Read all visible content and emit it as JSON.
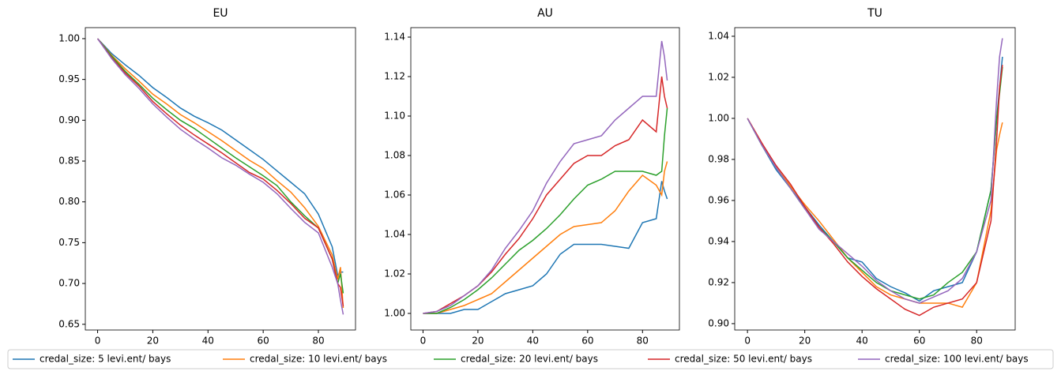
{
  "chart_data": [
    {
      "type": "line",
      "title": "EU",
      "x": [
        0,
        5,
        10,
        15,
        20,
        25,
        30,
        35,
        40,
        45,
        50,
        55,
        60,
        65,
        70,
        75,
        80,
        85,
        87,
        88,
        89
      ],
      "xlim": [
        -4.45,
        93.45
      ],
      "xticks": [
        0,
        20,
        40,
        60,
        80
      ],
      "ylim": [
        0.643,
        1.0135
      ],
      "yticks": [
        0.65,
        {
          "value": 0.7,
          "label": "0.70"
        },
        0.75,
        {
          "value": 0.8,
          "label": "0.80"
        },
        0.85,
        {
          "value": 0.9,
          "label": "0.90"
        },
        0.95,
        {
          "value": 1,
          "label": "1.00"
        }
      ],
      "series": [
        {
          "name": "credal_size: 5 levi.ent/ bays",
          "color": "#1f77b4",
          "values": [
            1.0,
            0.982,
            0.968,
            0.955,
            0.94,
            0.928,
            0.915,
            0.905,
            0.897,
            0.888,
            0.876,
            0.864,
            0.852,
            0.838,
            0.824,
            0.81,
            0.785,
            0.745,
            0.71,
            0.714,
            0.714
          ]
        },
        {
          "name": "credal_size: 10 levi.ent/ bays",
          "color": "#ff7f0e",
          "values": [
            1.0,
            0.98,
            0.963,
            0.948,
            0.932,
            0.92,
            0.907,
            0.897,
            0.886,
            0.875,
            0.863,
            0.851,
            0.841,
            0.826,
            0.812,
            0.793,
            0.77,
            0.735,
            0.705,
            0.72,
            0.67
          ]
        },
        {
          "name": "credal_size: 20 levi.ent/ bays",
          "color": "#2ca02c",
          "values": [
            1.0,
            0.979,
            0.96,
            0.944,
            0.927,
            0.913,
            0.9,
            0.89,
            0.878,
            0.866,
            0.854,
            0.843,
            0.832,
            0.82,
            0.8,
            0.783,
            0.768,
            0.73,
            0.7,
            0.712,
            0.688
          ]
        },
        {
          "name": "credal_size: 50 levi.ent/ bays",
          "color": "#d62728",
          "values": [
            1.0,
            0.977,
            0.958,
            0.942,
            0.923,
            0.908,
            0.894,
            0.882,
            0.871,
            0.86,
            0.848,
            0.836,
            0.828,
            0.814,
            0.798,
            0.78,
            0.768,
            0.73,
            0.7,
            0.695,
            0.672
          ]
        },
        {
          "name": "credal_size: 100 levi.ent/ bays",
          "color": "#9467bd",
          "values": [
            1.0,
            0.976,
            0.956,
            0.939,
            0.92,
            0.904,
            0.889,
            0.877,
            0.866,
            0.854,
            0.845,
            0.834,
            0.824,
            0.81,
            0.792,
            0.775,
            0.762,
            0.72,
            0.7,
            0.68,
            0.662
          ]
        }
      ]
    },
    {
      "type": "line",
      "title": "AU",
      "x": [
        0,
        5,
        10,
        15,
        20,
        25,
        30,
        35,
        40,
        45,
        50,
        55,
        60,
        65,
        70,
        75,
        80,
        85,
        87,
        88,
        89
      ],
      "xlim": [
        -4.45,
        93.45
      ],
      "xticks": [
        0,
        20,
        40,
        60,
        80
      ],
      "ylim": [
        0.9916,
        1.1448
      ],
      "yticks": [
        {
          "value": 1,
          "label": "1.00"
        },
        1.02,
        1.04,
        1.06,
        1.08,
        {
          "value": 1.1,
          "label": "1.10"
        },
        1.12,
        1.14
      ],
      "series": [
        {
          "color": "#1f77b4",
          "values": [
            1.0,
            1.0,
            1.0,
            1.002,
            1.002,
            1.006,
            1.01,
            1.012,
            1.014,
            1.02,
            1.03,
            1.035,
            1.035,
            1.035,
            1.034,
            1.033,
            1.046,
            1.048,
            1.067,
            1.062,
            1.058
          ]
        },
        {
          "color": "#ff7f0e",
          "values": [
            1.0,
            1.0,
            1.002,
            1.004,
            1.007,
            1.01,
            1.016,
            1.022,
            1.028,
            1.034,
            1.04,
            1.044,
            1.045,
            1.046,
            1.052,
            1.062,
            1.07,
            1.065,
            1.06,
            1.072,
            1.077
          ]
        },
        {
          "color": "#2ca02c",
          "values": [
            1.0,
            1.0,
            1.003,
            1.007,
            1.012,
            1.018,
            1.025,
            1.032,
            1.037,
            1.043,
            1.05,
            1.058,
            1.065,
            1.068,
            1.072,
            1.072,
            1.072,
            1.07,
            1.072,
            1.09,
            1.104
          ]
        },
        {
          "color": "#d62728",
          "values": [
            1.0,
            1.001,
            1.005,
            1.009,
            1.014,
            1.021,
            1.03,
            1.038,
            1.048,
            1.06,
            1.068,
            1.076,
            1.08,
            1.08,
            1.085,
            1.088,
            1.098,
            1.092,
            1.12,
            1.11,
            1.104
          ]
        },
        {
          "color": "#9467bd",
          "values": [
            1.0,
            1.001,
            1.004,
            1.009,
            1.014,
            1.022,
            1.033,
            1.042,
            1.052,
            1.066,
            1.077,
            1.086,
            1.088,
            1.09,
            1.098,
            1.104,
            1.11,
            1.11,
            1.138,
            1.13,
            1.118
          ]
        }
      ]
    },
    {
      "type": "line",
      "title": "TU",
      "x": [
        0,
        5,
        10,
        15,
        20,
        25,
        30,
        35,
        40,
        45,
        50,
        55,
        60,
        65,
        70,
        75,
        80,
        85,
        87,
        88,
        89
      ],
      "xlim": [
        -4.45,
        93.45
      ],
      "xticks": [
        0,
        20,
        40,
        60,
        80
      ],
      "ylim": [
        0.8969,
        1.0442
      ],
      "yticks": [
        {
          "value": 0.9,
          "label": "0.90"
        },
        0.92,
        0.94,
        0.96,
        0.98,
        {
          "value": 1,
          "label": "1.00"
        },
        1.02,
        1.04
      ],
      "series": [
        {
          "color": "#1f77b4",
          "values": [
            1.0,
            0.987,
            0.975,
            0.966,
            0.957,
            0.948,
            0.94,
            0.932,
            0.93,
            0.922,
            0.918,
            0.915,
            0.911,
            0.916,
            0.918,
            0.92,
            0.935,
            0.965,
            1.0,
            1.015,
            1.03
          ]
        },
        {
          "color": "#ff7f0e",
          "values": [
            1.0,
            0.988,
            0.976,
            0.967,
            0.958,
            0.95,
            0.941,
            0.932,
            0.925,
            0.918,
            0.914,
            0.912,
            0.91,
            0.91,
            0.91,
            0.908,
            0.92,
            0.955,
            0.985,
            0.992,
            0.998
          ]
        },
        {
          "color": "#2ca02c",
          "values": [
            1.0,
            0.987,
            0.976,
            0.966,
            0.956,
            0.947,
            0.94,
            0.932,
            0.926,
            0.92,
            0.916,
            0.914,
            0.912,
            0.914,
            0.92,
            0.925,
            0.935,
            0.965,
            1.0,
            1.012,
            1.025
          ]
        },
        {
          "color": "#d62728",
          "values": [
            1.0,
            0.988,
            0.977,
            0.968,
            0.957,
            0.947,
            0.939,
            0.93,
            0.923,
            0.917,
            0.912,
            0.907,
            0.904,
            0.908,
            0.91,
            0.912,
            0.92,
            0.95,
            0.99,
            1.015,
            1.026
          ]
        },
        {
          "color": "#9467bd",
          "values": [
            1.0,
            0.987,
            0.976,
            0.966,
            0.956,
            0.946,
            0.94,
            0.934,
            0.928,
            0.921,
            0.916,
            0.912,
            0.91,
            0.913,
            0.916,
            0.922,
            0.935,
            0.96,
            1.01,
            1.03,
            1.039
          ]
        }
      ]
    }
  ]
}
